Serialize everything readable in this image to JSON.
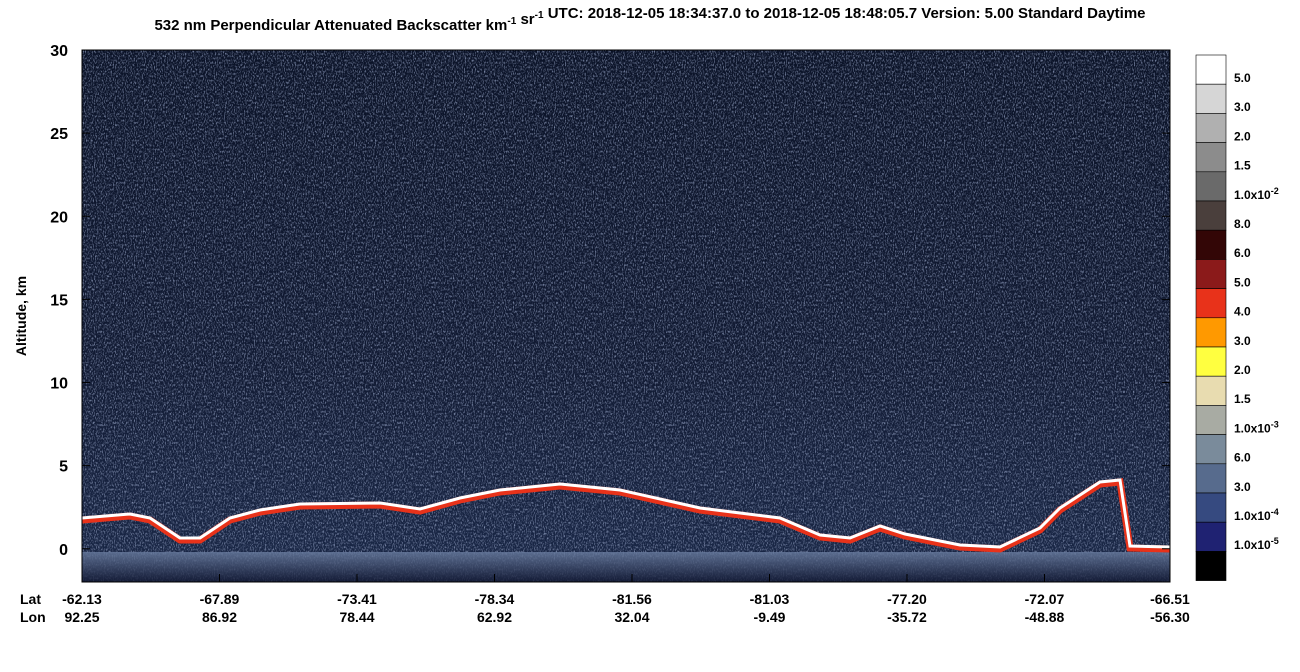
{
  "chart_data": {
    "type": "image",
    "title": [
      {
        "text": "532 nm Perpendicular Attenuated Backscatter km"
      },
      {
        "sup": "-1"
      },
      {
        "text": " sr"
      },
      {
        "sup": "-1"
      },
      {
        "text": "  UTC: 2018-12-05 18:34:37.0 to 2018-12-05 18:48:05.7  Version: 5.00 Standard Daytime"
      }
    ],
    "y_label": "Altitude, km",
    "ylim": [
      -2,
      30
    ],
    "yticks": [
      0,
      5,
      10,
      15,
      20,
      25,
      30
    ],
    "x_row_labels": [
      "Lat",
      "Lon"
    ],
    "lat": [
      "-62.13",
      "-67.89",
      "-73.41",
      "-78.34",
      "-81.56",
      "-81.03",
      "-77.20",
      "-72.07",
      "-66.51"
    ],
    "lon": [
      "92.25",
      "86.92",
      "78.44",
      "62.92",
      "32.04",
      "-9.49",
      "-35.72",
      "-48.88",
      "-56.30"
    ],
    "colorbar": {
      "colors": [
        "#ffffff",
        "#d6d6d6",
        "#b0b0b0",
        "#8c8c8c",
        "#6a6a6a",
        "#4a3f3c",
        "#330606",
        "#8b1a1a",
        "#e8321a",
        "#ff9900",
        "#ffff40",
        "#e8dcb0",
        "#a8aba3",
        "#7a8b9b",
        "#576b8d",
        "#364a80",
        "#1f2272",
        "#000000"
      ],
      "labels": [
        "5.0",
        "3.0",
        "2.0",
        "1.5",
        {
          "text": "1.0x10",
          "sup": "-2"
        },
        "8.0",
        "6.0",
        "5.0",
        "4.0",
        "3.0",
        "2.0",
        "1.5",
        {
          "text": "1.0x10",
          "sup": "-3"
        },
        "6.0",
        "3.0",
        {
          "text": "1.0x10",
          "sup": "-4"
        },
        {
          "text": "1.0x10",
          "sup": "-5"
        }
      ]
    }
  }
}
